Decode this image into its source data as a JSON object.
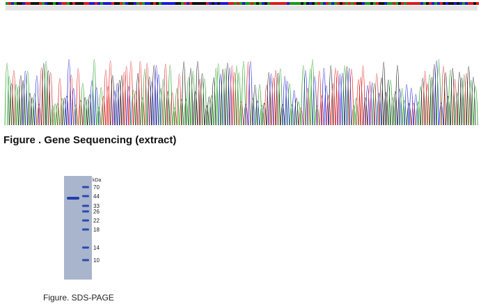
{
  "sequencing": {
    "caption": "Figure . Gene Sequencing (extract)"
  },
  "gel": {
    "unit": "kDa",
    "markers": [
      "70",
      "44",
      "33",
      "26",
      "22",
      "18",
      "14",
      "10"
    ],
    "caption": "Figure. SDS-PAGE"
  }
}
